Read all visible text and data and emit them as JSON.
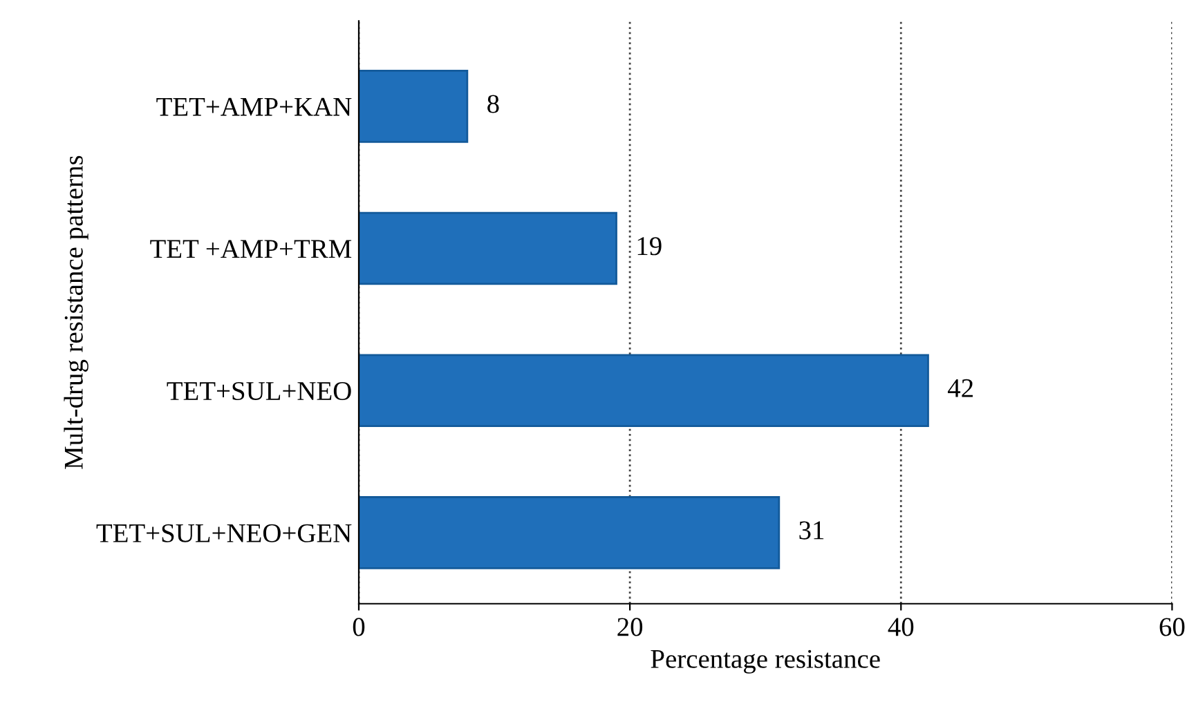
{
  "chart_data": {
    "type": "bar",
    "orientation": "horizontal",
    "xlabel": "Percentage resistance",
    "ylabel": "Mult-drug resistance patterns",
    "categories": [
      "TET+AMP+KAN",
      "TET +AMP+TRM",
      "TET+SUL+NEO",
      "TET+SUL+NEO+GEN"
    ],
    "values": [
      8,
      19,
      42,
      31
    ],
    "color": "#1f6fba",
    "xlim": [
      0,
      60
    ],
    "xticks": [
      0,
      20,
      40,
      60
    ],
    "grid": "x",
    "data_labels": true
  }
}
